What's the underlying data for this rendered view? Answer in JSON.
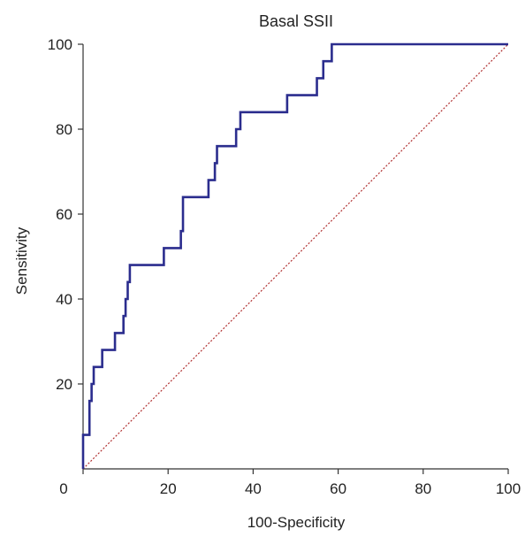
{
  "chart_data": {
    "type": "line",
    "title": "Basal SSII",
    "xlabel": "100-Specificity",
    "ylabel": "Sensitivity",
    "xlim": [
      0,
      100
    ],
    "ylim": [
      0,
      100
    ],
    "x_ticks": [
      0,
      20,
      40,
      60,
      80,
      100
    ],
    "y_ticks": [
      20,
      40,
      60,
      80,
      100
    ],
    "x_tick_labels": [
      "0",
      "20",
      "40",
      "60",
      "80",
      "100"
    ],
    "y_tick_labels": [
      "20",
      "40",
      "60",
      "80",
      "100"
    ],
    "grid": false,
    "series": [
      {
        "kind": "roc-curve",
        "color": "#2b2d8e",
        "style": "solid-step",
        "x": [
          0,
          0,
          1.5,
          1.5,
          2,
          2,
          2.5,
          2.5,
          4.5,
          4.5,
          7.5,
          7.5,
          9.5,
          9.5,
          10,
          10,
          10.5,
          10.5,
          11,
          11,
          11.5,
          11.5,
          19,
          19,
          23,
          23,
          23.5,
          23.5,
          29.5,
          29.5,
          31,
          31,
          31.5,
          31.5,
          36,
          36,
          37,
          37,
          48,
          48,
          55,
          55,
          56.5,
          56.5,
          58.5,
          58.5,
          100
        ],
        "y": [
          0,
          8,
          8,
          16,
          16,
          20,
          20,
          24,
          24,
          28,
          28,
          32,
          32,
          36,
          36,
          40,
          40,
          44,
          44,
          48,
          48,
          48,
          48,
          52,
          52,
          56,
          56,
          64,
          64,
          68,
          68,
          72,
          72,
          76,
          76,
          80,
          80,
          84,
          84,
          88,
          88,
          92,
          92,
          96,
          96,
          100,
          100
        ]
      },
      {
        "kind": "reference-line",
        "color": "#b03030",
        "style": "dotted",
        "x": [
          0,
          100
        ],
        "y": [
          0,
          100
        ]
      }
    ]
  }
}
